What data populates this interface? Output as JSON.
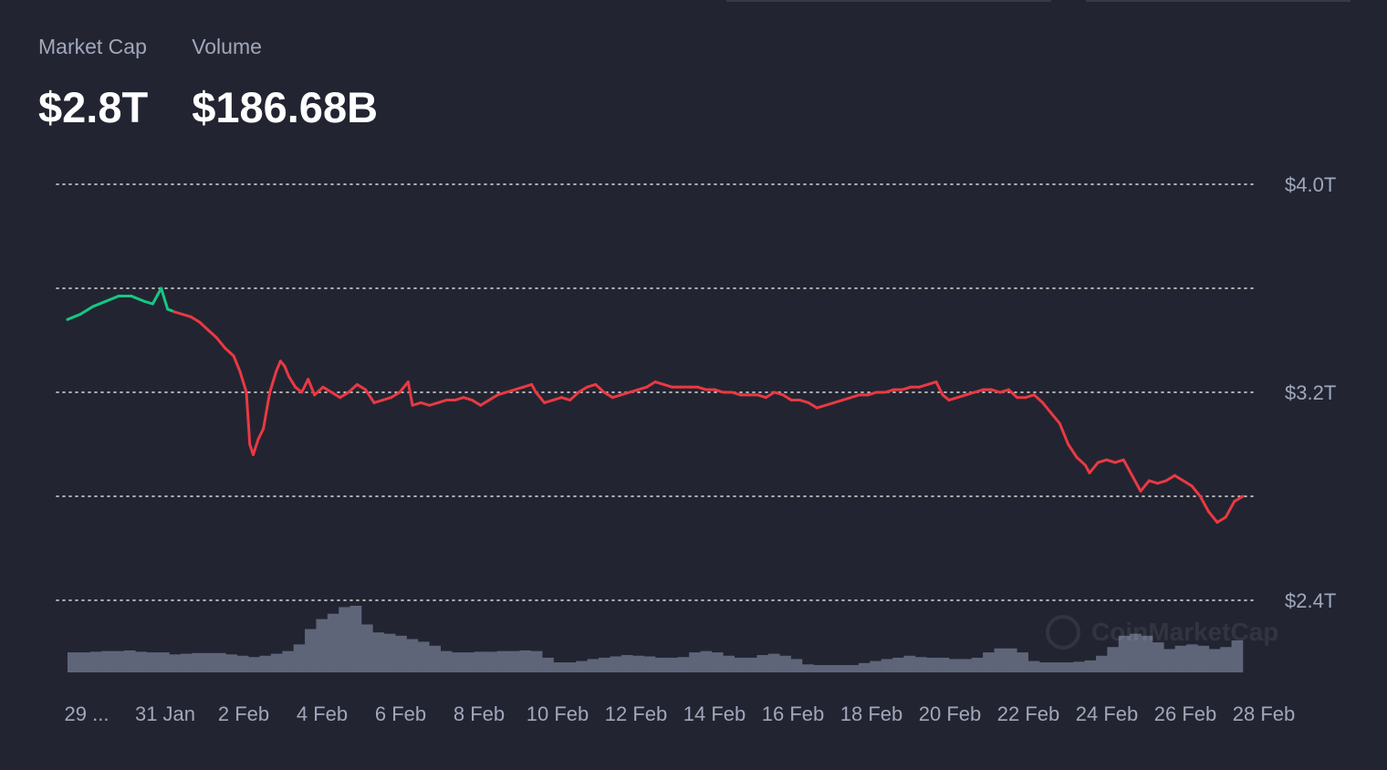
{
  "stats": {
    "market_cap_label": "Market Cap",
    "market_cap_value": "$2.8T",
    "volume_label": "Volume",
    "volume_value": "$186.68B"
  },
  "colors": {
    "background": "#222531",
    "up": "#16c784",
    "down": "#ea3943",
    "volume": "#5f6579",
    "grid": "#ffffff",
    "label": "#a1a7bb"
  },
  "watermark": {
    "text": "CoinMarketCap"
  },
  "chart_data": {
    "type": "line",
    "title": "",
    "xlabel": "",
    "ylabel": "",
    "ylim": [
      2.4,
      4.0
    ],
    "yticks": [
      2.4,
      2.8,
      3.2,
      3.6,
      4.0
    ],
    "ytick_labels": [
      "$2.4T",
      "",
      "$3.2T",
      "",
      "$4.0T"
    ],
    "x_tick_labels": [
      "29 ...",
      "31 Jan",
      "2 Feb",
      "4 Feb",
      "6 Feb",
      "8 Feb",
      "10 Feb",
      "12 Feb",
      "14 Feb",
      "16 Feb",
      "18 Feb",
      "20 Feb",
      "22 Feb",
      "24 Feb",
      "26 Feb",
      "28 Feb"
    ],
    "grid": true,
    "series": [
      {
        "values": [
          [
            0.0,
            3.48
          ],
          [
            0.3,
            3.5
          ],
          [
            0.6,
            3.53
          ],
          [
            0.9,
            3.55
          ],
          [
            1.2,
            3.57
          ],
          [
            1.5,
            3.57
          ],
          [
            1.8,
            3.55
          ],
          [
            2.0,
            3.54
          ],
          [
            2.2,
            3.6
          ],
          [
            2.35,
            3.52
          ],
          [
            2.5,
            3.51
          ],
          [
            2.7,
            3.5
          ],
          [
            2.9,
            3.49
          ],
          [
            3.1,
            3.47
          ],
          [
            3.3,
            3.44
          ],
          [
            3.5,
            3.41
          ],
          [
            3.7,
            3.37
          ],
          [
            3.9,
            3.34
          ],
          [
            4.05,
            3.28
          ],
          [
            4.2,
            3.2
          ],
          [
            4.28,
            3.0
          ],
          [
            4.36,
            2.96
          ],
          [
            4.48,
            3.02
          ],
          [
            4.6,
            3.06
          ],
          [
            4.75,
            3.2
          ],
          [
            4.9,
            3.28
          ],
          [
            5.0,
            3.32
          ],
          [
            5.1,
            3.3
          ],
          [
            5.2,
            3.26
          ],
          [
            5.35,
            3.22
          ],
          [
            5.5,
            3.2
          ],
          [
            5.65,
            3.25
          ],
          [
            5.8,
            3.19
          ],
          [
            6.0,
            3.22
          ],
          [
            6.2,
            3.2
          ],
          [
            6.4,
            3.18
          ],
          [
            6.6,
            3.2
          ],
          [
            6.8,
            3.23
          ],
          [
            7.0,
            3.21
          ],
          [
            7.2,
            3.16
          ],
          [
            7.4,
            3.17
          ],
          [
            7.6,
            3.18
          ],
          [
            7.8,
            3.2
          ],
          [
            8.0,
            3.24
          ],
          [
            8.1,
            3.15
          ],
          [
            8.3,
            3.16
          ],
          [
            8.5,
            3.15
          ],
          [
            8.7,
            3.16
          ],
          [
            8.9,
            3.17
          ],
          [
            9.1,
            3.17
          ],
          [
            9.3,
            3.18
          ],
          [
            9.5,
            3.17
          ],
          [
            9.7,
            3.15
          ],
          [
            9.9,
            3.17
          ],
          [
            10.1,
            3.19
          ],
          [
            10.3,
            3.2
          ],
          [
            10.5,
            3.21
          ],
          [
            10.7,
            3.22
          ],
          [
            10.9,
            3.23
          ],
          [
            11.0,
            3.2
          ],
          [
            11.2,
            3.16
          ],
          [
            11.4,
            3.17
          ],
          [
            11.6,
            3.18
          ],
          [
            11.8,
            3.17
          ],
          [
            12.0,
            3.2
          ],
          [
            12.2,
            3.22
          ],
          [
            12.4,
            3.23
          ],
          [
            12.6,
            3.2
          ],
          [
            12.8,
            3.18
          ],
          [
            13.0,
            3.19
          ],
          [
            13.2,
            3.2
          ],
          [
            13.4,
            3.21
          ],
          [
            13.6,
            3.22
          ],
          [
            13.8,
            3.24
          ],
          [
            14.0,
            3.23
          ],
          [
            14.2,
            3.22
          ],
          [
            14.4,
            3.22
          ],
          [
            14.6,
            3.22
          ],
          [
            14.8,
            3.22
          ],
          [
            15.0,
            3.21
          ],
          [
            15.2,
            3.21
          ],
          [
            15.4,
            3.2
          ],
          [
            15.6,
            3.2
          ],
          [
            15.8,
            3.19
          ],
          [
            16.0,
            3.19
          ],
          [
            16.2,
            3.19
          ],
          [
            16.4,
            3.18
          ],
          [
            16.6,
            3.2
          ],
          [
            16.8,
            3.19
          ],
          [
            17.0,
            3.17
          ],
          [
            17.2,
            3.17
          ],
          [
            17.4,
            3.16
          ],
          [
            17.6,
            3.14
          ],
          [
            17.8,
            3.15
          ],
          [
            18.0,
            3.16
          ],
          [
            18.2,
            3.17
          ],
          [
            18.4,
            3.18
          ],
          [
            18.6,
            3.19
          ],
          [
            18.8,
            3.19
          ],
          [
            19.0,
            3.2
          ],
          [
            19.2,
            3.2
          ],
          [
            19.4,
            3.21
          ],
          [
            19.6,
            3.21
          ],
          [
            19.8,
            3.22
          ],
          [
            20.0,
            3.22
          ],
          [
            20.2,
            3.23
          ],
          [
            20.4,
            3.24
          ],
          [
            20.55,
            3.19
          ],
          [
            20.7,
            3.17
          ],
          [
            20.9,
            3.18
          ],
          [
            21.1,
            3.19
          ],
          [
            21.3,
            3.2
          ],
          [
            21.5,
            3.21
          ],
          [
            21.7,
            3.21
          ],
          [
            21.9,
            3.2
          ],
          [
            22.1,
            3.21
          ],
          [
            22.3,
            3.18
          ],
          [
            22.5,
            3.18
          ],
          [
            22.7,
            3.19
          ],
          [
            22.9,
            3.16
          ],
          [
            23.1,
            3.12
          ],
          [
            23.3,
            3.08
          ],
          [
            23.5,
            3.0
          ],
          [
            23.7,
            2.95
          ],
          [
            23.9,
            2.92
          ],
          [
            24.0,
            2.89
          ],
          [
            24.2,
            2.93
          ],
          [
            24.4,
            2.94
          ],
          [
            24.6,
            2.93
          ],
          [
            24.8,
            2.94
          ],
          [
            25.0,
            2.88
          ],
          [
            25.2,
            2.82
          ],
          [
            25.4,
            2.86
          ],
          [
            25.6,
            2.85
          ],
          [
            25.8,
            2.86
          ],
          [
            26.0,
            2.88
          ],
          [
            26.2,
            2.86
          ],
          [
            26.4,
            2.84
          ],
          [
            26.6,
            2.8
          ],
          [
            26.8,
            2.74
          ],
          [
            27.0,
            2.7
          ],
          [
            27.2,
            2.72
          ],
          [
            27.4,
            2.78
          ],
          [
            27.6,
            2.8
          ]
        ]
      }
    ],
    "volume_relative": [
      0.3,
      0.3,
      0.31,
      0.32,
      0.32,
      0.33,
      0.31,
      0.3,
      0.3,
      0.27,
      0.28,
      0.29,
      0.29,
      0.29,
      0.27,
      0.25,
      0.23,
      0.25,
      0.28,
      0.32,
      0.42,
      0.65,
      0.8,
      0.88,
      0.98,
      1.0,
      0.72,
      0.6,
      0.58,
      0.55,
      0.5,
      0.46,
      0.4,
      0.32,
      0.3,
      0.3,
      0.31,
      0.31,
      0.32,
      0.32,
      0.33,
      0.32,
      0.22,
      0.15,
      0.15,
      0.17,
      0.2,
      0.22,
      0.24,
      0.26,
      0.25,
      0.24,
      0.22,
      0.22,
      0.23,
      0.3,
      0.32,
      0.3,
      0.25,
      0.22,
      0.22,
      0.26,
      0.28,
      0.25,
      0.2,
      0.12,
      0.11,
      0.11,
      0.11,
      0.11,
      0.14,
      0.17,
      0.2,
      0.22,
      0.25,
      0.23,
      0.22,
      0.22,
      0.2,
      0.2,
      0.22,
      0.3,
      0.36,
      0.36,
      0.3,
      0.17,
      0.15,
      0.15,
      0.15,
      0.16,
      0.18,
      0.25,
      0.38,
      0.55,
      0.58,
      0.55,
      0.45,
      0.35,
      0.4,
      0.42,
      0.4,
      0.35,
      0.38,
      0.48
    ]
  }
}
